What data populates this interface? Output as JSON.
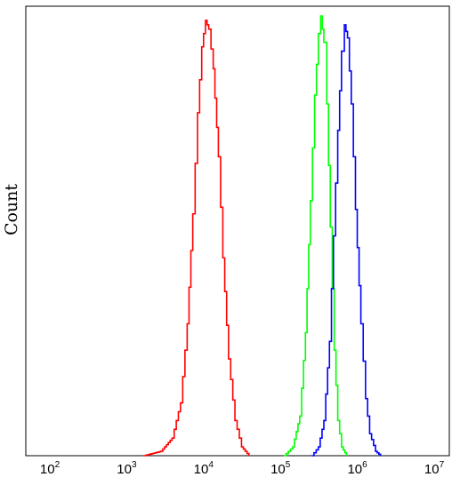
{
  "chart_data": {
    "type": "line",
    "title": "",
    "xlabel": "",
    "ylabel": "Count",
    "x_scale": "log",
    "xlim": [
      100,
      10000000
    ],
    "ylim": [
      0,
      100
    ],
    "grid": false,
    "legend": "none",
    "x_ticks": [
      {
        "base": "10",
        "exp": "2"
      },
      {
        "base": "10",
        "exp": "3"
      },
      {
        "base": "10",
        "exp": "4"
      },
      {
        "base": "10",
        "exp": "5"
      },
      {
        "base": "10",
        "exp": "6"
      },
      {
        "base": "10",
        "exp": "7"
      }
    ],
    "series": [
      {
        "color": "#ff0000",
        "x": [
          1500,
          2500,
          3500,
          4500,
          5500,
          6500,
          7500,
          8500,
          9500,
          10500,
          12000,
          14000,
          16000,
          19000,
          23000,
          28000,
          35000
        ],
        "y": [
          0,
          1,
          4,
          12,
          30,
          55,
          78,
          93,
          99,
          97,
          88,
          68,
          45,
          22,
          8,
          2,
          0
        ]
      },
      {
        "color": "#00ff00",
        "x": [
          100000,
          130000,
          160000,
          190000,
          220000,
          250000,
          280000,
          300000,
          330000,
          360000,
          400000,
          450000,
          500000,
          560000,
          650000
        ],
        "y": [
          0,
          2,
          9,
          28,
          58,
          82,
          96,
          100,
          94,
          80,
          52,
          24,
          8,
          2,
          0
        ]
      },
      {
        "color": "#0000ff",
        "x": [
          230000,
          280000,
          330000,
          390000,
          440000,
          500000,
          560000,
          610000,
          670000,
          750000,
          850000,
          1000000,
          1150000,
          1300000,
          1550000,
          1800000
        ],
        "y": [
          0,
          2,
          8,
          26,
          50,
          74,
          92,
          98,
          95,
          80,
          56,
          30,
          13,
          5,
          1,
          0
        ]
      }
    ]
  }
}
